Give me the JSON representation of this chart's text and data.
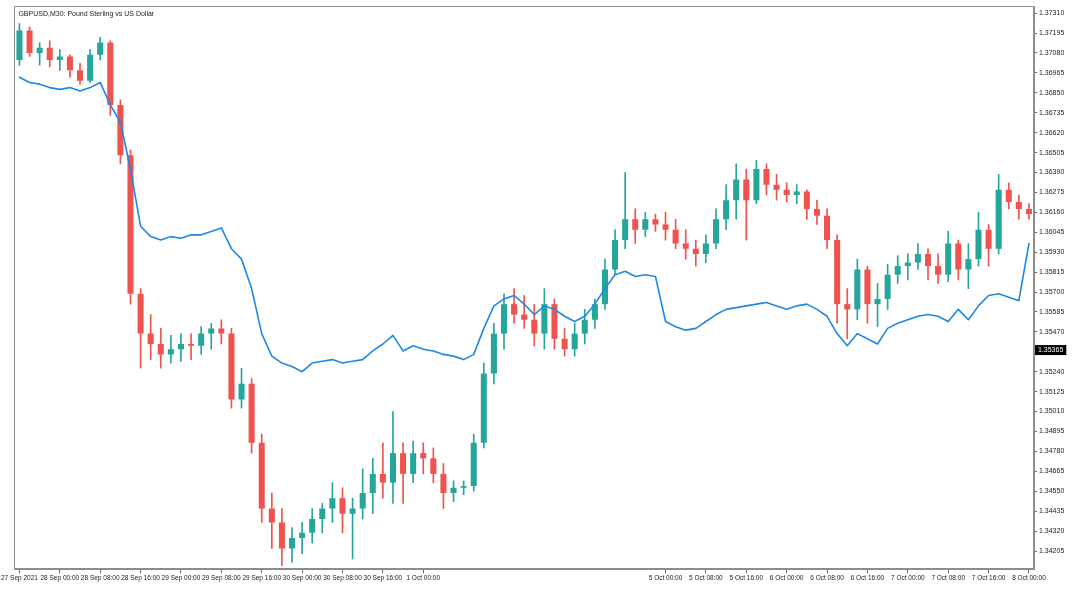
{
  "chart_data": {
    "type": "candlestick",
    "title": "GBPUSD,M30: Pound Sterling vs US Dollar",
    "categories": [
      "27 Sep 2021",
      null,
      null,
      null,
      "28 Sep 00:00",
      null,
      null,
      null,
      "28 Sep 08:00",
      null,
      null,
      null,
      "28 Sep 16:00",
      null,
      null,
      null,
      "29 Sep 00:00",
      null,
      null,
      null,
      "29 Sep 08:00",
      null,
      null,
      null,
      "29 Sep 16:00",
      null,
      null,
      null,
      "30 Sep 00:00",
      null,
      null,
      null,
      "30 Sep 08:00",
      null,
      null,
      null,
      "30 Sep 16:00",
      null,
      null,
      null,
      "1 Oct 00:00",
      null,
      null,
      null,
      null,
      null,
      null,
      null,
      null,
      null,
      null,
      null,
      null,
      null,
      null,
      null,
      null,
      null,
      null,
      null,
      null,
      null,
      null,
      null,
      "5 Oct 00:00",
      null,
      null,
      null,
      "5 Oct 08:00",
      null,
      null,
      null,
      "5 Oct 16:00",
      null,
      null,
      null,
      "6 Oct 00:00",
      null,
      null,
      null,
      "6 Oct 08:00",
      null,
      null,
      null,
      "6 Oct 16:00",
      null,
      null,
      null,
      "7 Oct 00:00",
      null,
      null,
      null,
      "7 Oct 08:00",
      null,
      null,
      null,
      "7 Oct 16:00",
      null,
      null,
      null,
      "8 Oct 00:00"
    ],
    "ylim": [
      1.341,
      1.3735
    ],
    "yticks": [
      {
        "value": 1.3731,
        "label": "1.37310"
      },
      1.37195,
      {
        "value": 1.3708,
        "label": "1.37080"
      },
      1.36965,
      {
        "value": 1.3685,
        "label": "1.36850"
      },
      1.36735,
      {
        "value": 1.3662,
        "label": "1.36620"
      },
      1.36505,
      {
        "value": 1.3639,
        "label": "1.36390"
      },
      1.36275,
      {
        "value": 1.3616,
        "label": "1.36160"
      },
      1.36045,
      {
        "value": 1.3593,
        "label": "1.35930"
      },
      1.35815,
      {
        "value": 1.357,
        "label": "1.35700"
      },
      1.35585,
      {
        "value": 1.3547,
        "label": "1.35470"
      },
      {
        "value": 1.3524,
        "label": "1.35240"
      },
      1.35125,
      {
        "value": 1.3501,
        "label": "1.35010"
      },
      1.34895,
      {
        "value": 1.3478,
        "label": "1.34780"
      },
      1.34665,
      {
        "value": 1.3455,
        "label": "1.34550"
      },
      1.34435,
      {
        "value": 1.3432,
        "label": "1.34320"
      },
      1.34205
    ],
    "series": [
      {
        "type": "line",
        "color": "#1e88e5",
        "values": [
          1.3694,
          1.3691,
          1.369,
          1.3688,
          1.3687,
          1.3688,
          1.3686,
          1.3688,
          1.3691,
          1.3678,
          1.3668,
          1.3641,
          1.3608,
          1.3602,
          1.36,
          1.3602,
          1.3601,
          1.3603,
          1.3603,
          1.3605,
          1.3607,
          1.3595,
          1.3589,
          1.3572,
          1.3546,
          1.3533,
          1.3529,
          1.3527,
          1.3524,
          1.3529,
          1.353,
          1.3531,
          1.3529,
          1.353,
          1.3531,
          1.3536,
          1.354,
          1.3545,
          1.3536,
          1.3539,
          1.3537,
          1.3536,
          1.3534,
          1.3533,
          1.3531,
          1.3534,
          1.3549,
          1.3562,
          1.3566,
          1.3568,
          1.3563,
          1.3557,
          1.3562,
          1.356,
          1.3556,
          1.3553,
          1.3556,
          1.3563,
          1.3572,
          1.358,
          1.3582,
          1.3579,
          1.358,
          1.3579,
          1.3553,
          1.355,
          1.3548,
          1.3549,
          1.3553,
          1.3557,
          1.356,
          1.3561,
          1.3562,
          1.3563,
          1.3564,
          1.3562,
          1.356,
          1.3562,
          1.3563,
          1.356,
          1.3556,
          1.3546,
          1.3539,
          1.3546,
          1.3543,
          1.354,
          1.3549,
          1.3552,
          1.3554,
          1.3556,
          1.3557,
          1.3556,
          1.3553,
          1.356,
          1.3554,
          1.3562,
          1.3568,
          1.3569,
          1.3567,
          1.3565,
          1.3598
        ]
      },
      {
        "ohlc": [
          [
            1.3704,
            1.3725,
            1.3701,
            1.3721
          ],
          [
            1.3721,
            1.3723,
            1.3706,
            1.3708
          ],
          [
            1.3708,
            1.3714,
            1.3701,
            1.3711
          ],
          [
            1.3711,
            1.3715,
            1.37,
            1.3704
          ],
          [
            1.3704,
            1.371,
            1.3698,
            1.3706
          ],
          [
            1.3706,
            1.3707,
            1.3694,
            1.3698
          ],
          [
            1.3698,
            1.3702,
            1.369,
            1.3692
          ],
          [
            1.3692,
            1.371,
            1.3691,
            1.3707
          ],
          [
            1.3707,
            1.3717,
            1.3704,
            1.3714
          ],
          [
            1.3714,
            1.3715,
            1.3672,
            1.3678
          ],
          [
            1.3678,
            1.3681,
            1.3644,
            1.3649
          ],
          [
            1.3649,
            1.3652,
            1.3563,
            1.3569
          ],
          [
            1.3569,
            1.3572,
            1.3526,
            1.3546
          ],
          [
            1.3546,
            1.3557,
            1.3531,
            1.354
          ],
          [
            1.354,
            1.3549,
            1.3526,
            1.3534
          ],
          [
            1.3534,
            1.3545,
            1.3529,
            1.3537
          ],
          [
            1.3537,
            1.3546,
            1.353,
            1.354
          ],
          [
            1.354,
            1.3546,
            1.3531,
            1.3539
          ],
          [
            1.3539,
            1.355,
            1.3534,
            1.3546
          ],
          [
            1.3546,
            1.3552,
            1.3537,
            1.3549
          ],
          [
            1.3549,
            1.3554,
            1.354,
            1.3546
          ],
          [
            1.3546,
            1.3549,
            1.3503,
            1.3508
          ],
          [
            1.3508,
            1.3526,
            1.3503,
            1.3517
          ],
          [
            1.3517,
            1.352,
            1.3477,
            1.3483
          ],
          [
            1.3483,
            1.3488,
            1.3437,
            1.3445
          ],
          [
            1.3445,
            1.3454,
            1.3422,
            1.3437
          ],
          [
            1.3437,
            1.3445,
            1.3412,
            1.3422
          ],
          [
            1.3422,
            1.3434,
            1.3414,
            1.3428
          ],
          [
            1.3428,
            1.3437,
            1.3419,
            1.3431
          ],
          [
            1.3431,
            1.3445,
            1.3425,
            1.3439
          ],
          [
            1.3439,
            1.3448,
            1.3431,
            1.3445
          ],
          [
            1.3445,
            1.346,
            1.3437,
            1.3451
          ],
          [
            1.3451,
            1.3457,
            1.3431,
            1.3442
          ],
          [
            1.3442,
            1.3451,
            1.3416,
            1.3445
          ],
          [
            1.3445,
            1.3468,
            1.3439,
            1.3454
          ],
          [
            1.3454,
            1.3474,
            1.3442,
            1.3465
          ],
          [
            1.3465,
            1.3483,
            1.3451,
            1.346
          ],
          [
            1.346,
            1.3501,
            1.3448,
            1.3477
          ],
          [
            1.3477,
            1.3483,
            1.3448,
            1.3465
          ],
          [
            1.3465,
            1.3484,
            1.346,
            1.3477
          ],
          [
            1.3477,
            1.3483,
            1.3465,
            1.3474
          ],
          [
            1.3474,
            1.348,
            1.346,
            1.3465
          ],
          [
            1.3465,
            1.3471,
            1.3445,
            1.3454
          ],
          [
            1.3454,
            1.3461,
            1.3449,
            1.3457
          ],
          [
            1.3457,
            1.3461,
            1.3453,
            1.3458
          ],
          [
            1.3458,
            1.3488,
            1.3455,
            1.3483
          ],
          [
            1.3483,
            1.3529,
            1.348,
            1.3523
          ],
          [
            1.3523,
            1.3552,
            1.3517,
            1.3546
          ],
          [
            1.3546,
            1.3569,
            1.3537,
            1.3563
          ],
          [
            1.3563,
            1.3572,
            1.3552,
            1.3557
          ],
          [
            1.3557,
            1.3568,
            1.3549,
            1.3554
          ],
          [
            1.3554,
            1.3563,
            1.3539,
            1.3546
          ],
          [
            1.3546,
            1.3572,
            1.3537,
            1.3563
          ],
          [
            1.3563,
            1.3566,
            1.3537,
            1.3543
          ],
          [
            1.3543,
            1.3549,
            1.3533,
            1.3537
          ],
          [
            1.3537,
            1.3552,
            1.3533,
            1.3546
          ],
          [
            1.3546,
            1.356,
            1.354,
            1.3554
          ],
          [
            1.3554,
            1.3566,
            1.3549,
            1.3563
          ],
          [
            1.3563,
            1.3589,
            1.356,
            1.3583
          ],
          [
            1.3583,
            1.3606,
            1.358,
            1.36
          ],
          [
            1.36,
            1.3639,
            1.3595,
            1.3612
          ],
          [
            1.3612,
            1.3618,
            1.3598,
            1.3606
          ],
          [
            1.3606,
            1.3616,
            1.3602,
            1.3612
          ],
          [
            1.3612,
            1.3615,
            1.3605,
            1.3609
          ],
          [
            1.3609,
            1.3616,
            1.36,
            1.3606
          ],
          [
            1.3606,
            1.3612,
            1.3595,
            1.3598
          ],
          [
            1.3598,
            1.3606,
            1.3589,
            1.3595
          ],
          [
            1.3595,
            1.36,
            1.3585,
            1.3592
          ],
          [
            1.3592,
            1.3603,
            1.3587,
            1.3598
          ],
          [
            1.3598,
            1.3618,
            1.3595,
            1.3612
          ],
          [
            1.3612,
            1.3632,
            1.3606,
            1.3623
          ],
          [
            1.3623,
            1.3644,
            1.3612,
            1.3635
          ],
          [
            1.3635,
            1.3641,
            1.36,
            1.3623
          ],
          [
            1.3623,
            1.3646,
            1.3621,
            1.3641
          ],
          [
            1.3641,
            1.3644,
            1.3626,
            1.3632
          ],
          [
            1.3632,
            1.3638,
            1.3623,
            1.3629
          ],
          [
            1.3629,
            1.3633,
            1.3622,
            1.3626
          ],
          [
            1.3626,
            1.3632,
            1.3621,
            1.3628
          ],
          [
            1.3628,
            1.3629,
            1.3612,
            1.3618
          ],
          [
            1.3618,
            1.3623,
            1.3609,
            1.3614
          ],
          [
            1.3614,
            1.3618,
            1.3595,
            1.36
          ],
          [
            1.36,
            1.3603,
            1.3552,
            1.3563
          ],
          [
            1.3563,
            1.3572,
            1.3543,
            1.356
          ],
          [
            1.356,
            1.3589,
            1.3554,
            1.3583
          ],
          [
            1.3583,
            1.3585,
            1.3552,
            1.3563
          ],
          [
            1.3563,
            1.3575,
            1.355,
            1.3566
          ],
          [
            1.3566,
            1.3586,
            1.356,
            1.358
          ],
          [
            1.358,
            1.3591,
            1.3575,
            1.3585
          ],
          [
            1.3585,
            1.3592,
            1.3577,
            1.3587
          ],
          [
            1.3587,
            1.3598,
            1.3583,
            1.3592
          ],
          [
            1.3592,
            1.3595,
            1.3577,
            1.3585
          ],
          [
            1.3585,
            1.3592,
            1.3575,
            1.358
          ],
          [
            1.358,
            1.3605,
            1.3576,
            1.3598
          ],
          [
            1.3598,
            1.36,
            1.3577,
            1.3583
          ],
          [
            1.3583,
            1.3598,
            1.3572,
            1.3589
          ],
          [
            1.3589,
            1.3616,
            1.3585,
            1.3606
          ],
          [
            1.3606,
            1.3609,
            1.3585,
            1.3595
          ],
          [
            1.3595,
            1.3638,
            1.3592,
            1.3629
          ],
          [
            1.3629,
            1.3633,
            1.3618,
            1.3622
          ],
          [
            1.3622,
            1.3626,
            1.3612,
            1.3618
          ],
          [
            1.3618,
            1.3621,
            1.3612,
            1.3615
          ]
        ],
        "colors": [
          "#26a69a",
          "#ef5350",
          "#26a69a",
          "#ef5350",
          "#26a69a",
          "#ef5350",
          "#ef5350",
          "#26a69a",
          "#26a69a",
          "#ef5350",
          "#ef5350",
          "#ef5350",
          "#ef5350",
          "#ef5350",
          "#ef5350",
          "#26a69a",
          "#26a69a",
          "#ef5350",
          "#26a69a",
          "#26a69a",
          "#ef5350",
          "#ef5350",
          "#26a69a",
          "#ef5350",
          "#ef5350",
          "#ef5350",
          "#ef5350",
          "#26a69a",
          "#26a69a",
          "#26a69a",
          "#26a69a",
          "#26a69a",
          "#ef5350",
          "#26a69a",
          "#26a69a",
          "#26a69a",
          "#ef5350",
          "#26a69a",
          "#ef5350",
          "#26a69a",
          "#ef5350",
          "#ef5350",
          "#ef5350",
          "#26a69a",
          "#26a69a",
          "#26a69a",
          "#26a69a",
          "#26a69a",
          "#26a69a",
          "#ef5350",
          "#ef5350",
          "#ef5350",
          "#26a69a",
          "#ef5350",
          "#ef5350",
          "#26a69a",
          "#26a69a",
          "#26a69a",
          "#26a69a",
          "#26a69a",
          "#26a69a",
          "#ef5350",
          "#26a69a",
          "#ef5350",
          "#ef5350",
          "#ef5350",
          "#ef5350",
          "#ef5350",
          "#26a69a",
          "#26a69a",
          "#26a69a",
          "#26a69a",
          "#ef5350",
          "#26a69a",
          "#ef5350",
          "#ef5350",
          "#ef5350",
          "#26a69a",
          "#ef5350",
          "#ef5350",
          "#ef5350",
          "#ef5350",
          "#ef5350",
          "#26a69a",
          "#ef5350",
          "#26a69a",
          "#26a69a",
          "#26a69a",
          "#26a69a",
          "#26a69a",
          "#ef5350",
          "#ef5350",
          "#26a69a",
          "#ef5350",
          "#26a69a",
          "#26a69a",
          "#ef5350",
          "#26a69a",
          "#ef5350",
          "#ef5350",
          "#ef5350"
        ]
      }
    ],
    "annotations": [
      {
        "text": "1.35365",
        "y": 1.35365
      }
    ]
  }
}
